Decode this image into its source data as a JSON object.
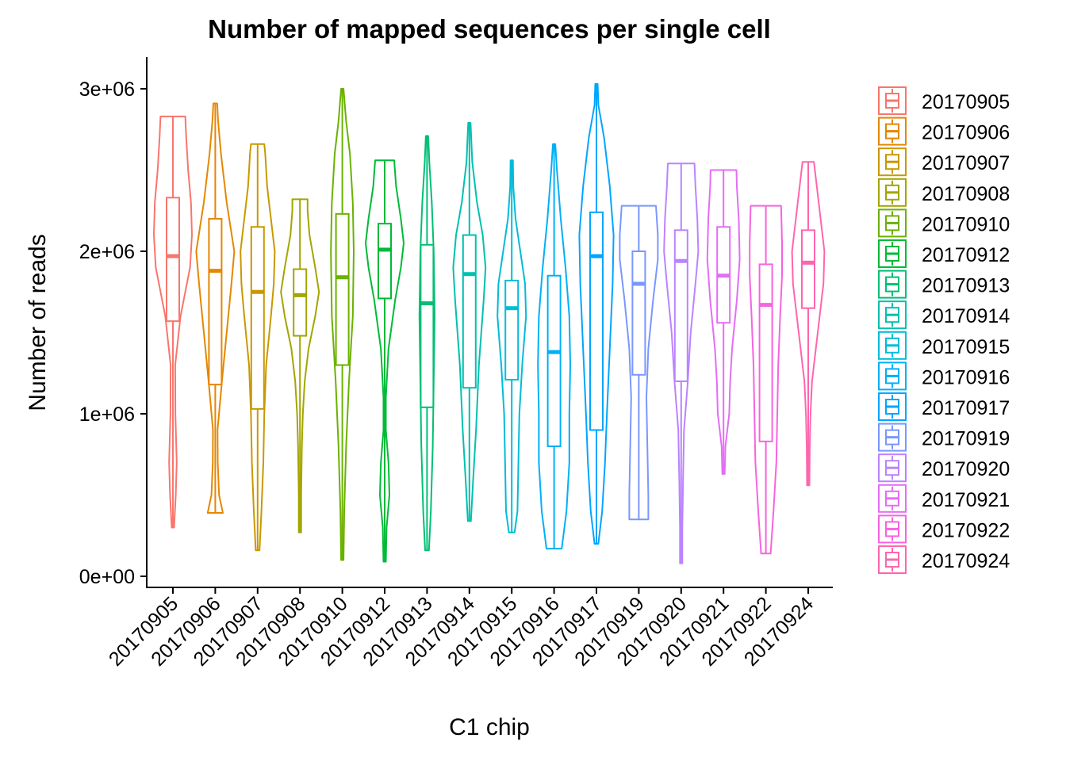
{
  "chart_data": {
    "type": "violin",
    "title": "Number of mapped sequences per single cell",
    "xlabel": "C1 chip",
    "ylabel": "Number of reads",
    "ylim": [
      -60000,
      3200000
    ],
    "yticks": [
      0,
      1000000,
      2000000,
      3000000
    ],
    "ytick_labels": [
      "0e+00",
      "1e+06",
      "2e+06",
      "3e+06"
    ],
    "legend_position": "right",
    "grid": false,
    "categories": [
      "20170905",
      "20170906",
      "20170907",
      "20170908",
      "20170910",
      "20170912",
      "20170913",
      "20170914",
      "20170915",
      "20170916",
      "20170917",
      "20170919",
      "20170920",
      "20170921",
      "20170922",
      "20170924"
    ],
    "series": [
      {
        "name": "20170905",
        "color": "#F8766D",
        "min": 300000,
        "q1": 1570000,
        "median": 1970000,
        "q3": 2330000,
        "max": 2830000,
        "density": [
          [
            300000,
            0.02
          ],
          [
            500000,
            0.15
          ],
          [
            700000,
            0.2
          ],
          [
            1000000,
            0.13
          ],
          [
            1300000,
            0.12
          ],
          [
            1600000,
            0.4
          ],
          [
            1900000,
            0.9
          ],
          [
            2100000,
            1.0
          ],
          [
            2300000,
            0.95
          ],
          [
            2500000,
            0.8
          ],
          [
            2700000,
            0.7
          ],
          [
            2830000,
            0.65
          ]
        ]
      },
      {
        "name": "20170906",
        "color": "#E58700",
        "min": 390000,
        "q1": 1180000,
        "median": 1880000,
        "q3": 2200000,
        "max": 2910000,
        "density": [
          [
            390000,
            0.4
          ],
          [
            500000,
            0.2
          ],
          [
            700000,
            0.13
          ],
          [
            900000,
            0.12
          ],
          [
            1200000,
            0.35
          ],
          [
            1500000,
            0.6
          ],
          [
            1800000,
            0.85
          ],
          [
            2000000,
            1.0
          ],
          [
            2300000,
            0.6
          ],
          [
            2600000,
            0.3
          ],
          [
            2800000,
            0.15
          ],
          [
            2910000,
            0.1
          ]
        ]
      },
      {
        "name": "20170907",
        "color": "#C99800",
        "min": 160000,
        "q1": 1030000,
        "median": 1750000,
        "q3": 2150000,
        "max": 2660000,
        "density": [
          [
            160000,
            0.1
          ],
          [
            400000,
            0.2
          ],
          [
            700000,
            0.3
          ],
          [
            1000000,
            0.35
          ],
          [
            1300000,
            0.45
          ],
          [
            1600000,
            0.7
          ],
          [
            1800000,
            0.85
          ],
          [
            2000000,
            0.9
          ],
          [
            2200000,
            0.7
          ],
          [
            2400000,
            0.5
          ],
          [
            2600000,
            0.4
          ],
          [
            2660000,
            0.35
          ]
        ]
      },
      {
        "name": "20170908",
        "color": "#A3A500",
        "min": 270000,
        "q1": 1480000,
        "median": 1730000,
        "q3": 1890000,
        "max": 2320000,
        "density": [
          [
            270000,
            0.03
          ],
          [
            500000,
            0.05
          ],
          [
            800000,
            0.1
          ],
          [
            1000000,
            0.15
          ],
          [
            1200000,
            0.25
          ],
          [
            1400000,
            0.45
          ],
          [
            1600000,
            0.8
          ],
          [
            1750000,
            1.0
          ],
          [
            1900000,
            0.8
          ],
          [
            2100000,
            0.5
          ],
          [
            2250000,
            0.4
          ],
          [
            2320000,
            0.4
          ]
        ]
      },
      {
        "name": "20170910",
        "color": "#6BB100",
        "min": 100000,
        "q1": 1300000,
        "median": 1840000,
        "q3": 2230000,
        "max": 3000000,
        "density": [
          [
            100000,
            0.02
          ],
          [
            400000,
            0.1
          ],
          [
            800000,
            0.2
          ],
          [
            1200000,
            0.35
          ],
          [
            1600000,
            0.55
          ],
          [
            2000000,
            0.6
          ],
          [
            2300000,
            0.55
          ],
          [
            2600000,
            0.4
          ],
          [
            2800000,
            0.2
          ],
          [
            3000000,
            0.02
          ]
        ]
      },
      {
        "name": "20170912",
        "color": "#00BA38",
        "min": 90000,
        "q1": 1710000,
        "median": 2010000,
        "q3": 2170000,
        "max": 2560000,
        "density": [
          [
            90000,
            0.05
          ],
          [
            300000,
            0.1
          ],
          [
            500000,
            0.25
          ],
          [
            700000,
            0.2
          ],
          [
            900000,
            0.05
          ],
          [
            1100000,
            0.05
          ],
          [
            1400000,
            0.2
          ],
          [
            1700000,
            0.55
          ],
          [
            1900000,
            0.85
          ],
          [
            2050000,
            1.0
          ],
          [
            2200000,
            0.85
          ],
          [
            2400000,
            0.6
          ],
          [
            2560000,
            0.5
          ]
        ]
      },
      {
        "name": "20170913",
        "color": "#00BF74",
        "min": 160000,
        "q1": 1040000,
        "median": 1680000,
        "q3": 2040000,
        "max": 2710000,
        "density": [
          [
            160000,
            0.1
          ],
          [
            400000,
            0.2
          ],
          [
            800000,
            0.3
          ],
          [
            1200000,
            0.35
          ],
          [
            1600000,
            0.4
          ],
          [
            2000000,
            0.35
          ],
          [
            2300000,
            0.25
          ],
          [
            2550000,
            0.12
          ],
          [
            2710000,
            0.05
          ]
        ]
      },
      {
        "name": "20170914",
        "color": "#00C0AF",
        "min": 340000,
        "q1": 1160000,
        "median": 1860000,
        "q3": 2100000,
        "max": 2790000,
        "density": [
          [
            340000,
            0.08
          ],
          [
            600000,
            0.2
          ],
          [
            900000,
            0.35
          ],
          [
            1300000,
            0.5
          ],
          [
            1700000,
            0.75
          ],
          [
            1900000,
            0.85
          ],
          [
            2100000,
            0.7
          ],
          [
            2300000,
            0.4
          ],
          [
            2550000,
            0.15
          ],
          [
            2790000,
            0.03
          ]
        ]
      },
      {
        "name": "20170915",
        "color": "#00BCD8",
        "min": 270000,
        "q1": 1210000,
        "median": 1650000,
        "q3": 1820000,
        "max": 2560000,
        "density": [
          [
            270000,
            0.15
          ],
          [
            400000,
            0.3
          ],
          [
            700000,
            0.35
          ],
          [
            1000000,
            0.4
          ],
          [
            1300000,
            0.55
          ],
          [
            1600000,
            0.75
          ],
          [
            1800000,
            0.7
          ],
          [
            2000000,
            0.45
          ],
          [
            2200000,
            0.2
          ],
          [
            2400000,
            0.08
          ],
          [
            2560000,
            0.03
          ]
        ]
      },
      {
        "name": "20170916",
        "color": "#00B0F6",
        "min": 170000,
        "q1": 800000,
        "median": 1380000,
        "q3": 1850000,
        "max": 2660000,
        "density": [
          [
            170000,
            0.4
          ],
          [
            400000,
            0.65
          ],
          [
            700000,
            0.8
          ],
          [
            1000000,
            0.8
          ],
          [
            1300000,
            0.85
          ],
          [
            1600000,
            0.8
          ],
          [
            1900000,
            0.6
          ],
          [
            2200000,
            0.35
          ],
          [
            2500000,
            0.15
          ],
          [
            2660000,
            0.05
          ]
        ]
      },
      {
        "name": "20170917",
        "color": "#00A5FF",
        "min": 200000,
        "q1": 900000,
        "median": 1970000,
        "q3": 2240000,
        "max": 3030000,
        "density": [
          [
            200000,
            0.1
          ],
          [
            400000,
            0.3
          ],
          [
            700000,
            0.45
          ],
          [
            1000000,
            0.55
          ],
          [
            1400000,
            0.7
          ],
          [
            1800000,
            0.85
          ],
          [
            2100000,
            0.9
          ],
          [
            2400000,
            0.7
          ],
          [
            2700000,
            0.4
          ],
          [
            2900000,
            0.1
          ],
          [
            3030000,
            0.03
          ]
        ]
      },
      {
        "name": "20170919",
        "color": "#7997FF",
        "min": 350000,
        "q1": 1240000,
        "median": 1800000,
        "q3": 2000000,
        "max": 2280000,
        "density": [
          [
            350000,
            0.5
          ],
          [
            500000,
            0.5
          ],
          [
            800000,
            0.45
          ],
          [
            1100000,
            0.4
          ],
          [
            1400000,
            0.5
          ],
          [
            1700000,
            0.75
          ],
          [
            1950000,
            1.0
          ],
          [
            2100000,
            1.0
          ],
          [
            2280000,
            0.9
          ]
        ]
      },
      {
        "name": "20170920",
        "color": "#BB83FF",
        "min": 80000,
        "q1": 1200000,
        "median": 1940000,
        "q3": 2130000,
        "max": 2540000,
        "density": [
          [
            80000,
            0.02
          ],
          [
            300000,
            0.05
          ],
          [
            600000,
            0.1
          ],
          [
            900000,
            0.15
          ],
          [
            1200000,
            0.35
          ],
          [
            1500000,
            0.5
          ],
          [
            1800000,
            0.75
          ],
          [
            2000000,
            0.9
          ],
          [
            2200000,
            0.85
          ],
          [
            2400000,
            0.75
          ],
          [
            2540000,
            0.7
          ]
        ]
      },
      {
        "name": "20170921",
        "color": "#E46DF6",
        "min": 630000,
        "q1": 1560000,
        "median": 1850000,
        "q3": 2150000,
        "max": 2500000,
        "density": [
          [
            630000,
            0.03
          ],
          [
            800000,
            0.1
          ],
          [
            1000000,
            0.3
          ],
          [
            1200000,
            0.35
          ],
          [
            1400000,
            0.45
          ],
          [
            1700000,
            0.7
          ],
          [
            1950000,
            0.85
          ],
          [
            2200000,
            0.8
          ],
          [
            2400000,
            0.7
          ],
          [
            2500000,
            0.68
          ]
        ]
      },
      {
        "name": "20170922",
        "color": "#F763E0",
        "min": 140000,
        "q1": 830000,
        "median": 1670000,
        "q3": 1920000,
        "max": 2280000,
        "density": [
          [
            140000,
            0.25
          ],
          [
            400000,
            0.4
          ],
          [
            700000,
            0.55
          ],
          [
            1000000,
            0.6
          ],
          [
            1300000,
            0.65
          ],
          [
            1600000,
            0.75
          ],
          [
            1850000,
            0.85
          ],
          [
            2050000,
            0.85
          ],
          [
            2280000,
            0.8
          ]
        ]
      },
      {
        "name": "20170924",
        "color": "#FF65AE",
        "min": 560000,
        "q1": 1650000,
        "median": 1930000,
        "q3": 2130000,
        "max": 2550000,
        "density": [
          [
            560000,
            0.02
          ],
          [
            800000,
            0.08
          ],
          [
            1000000,
            0.12
          ],
          [
            1200000,
            0.2
          ],
          [
            1500000,
            0.5
          ],
          [
            1800000,
            0.8
          ],
          [
            2000000,
            0.85
          ],
          [
            2250000,
            0.6
          ],
          [
            2450000,
            0.4
          ],
          [
            2550000,
            0.3
          ]
        ]
      }
    ]
  }
}
